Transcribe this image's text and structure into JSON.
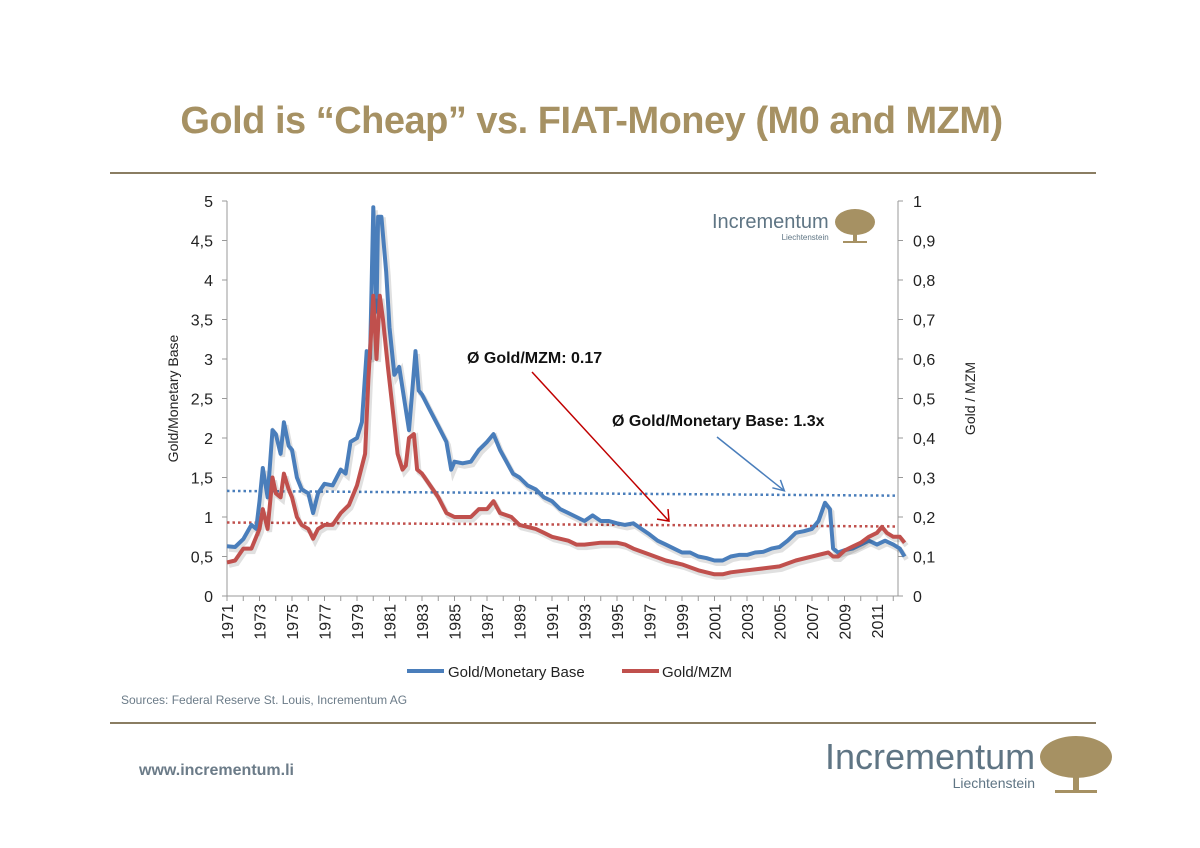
{
  "slide": {
    "title": "Gold is “Cheap” vs. FIAT-Money (M0 and MZM)",
    "sources": "Sources: Federal Reserve St. Louis, Incrementum AG",
    "url": "www.incrementum.li",
    "logo": {
      "name": "Incrementum",
      "sub": "Liechtenstein",
      "icon": "oak-tree-icon"
    },
    "colors": {
      "title": "#a69163",
      "blue": "#4a7ebb",
      "red": "#c0504d",
      "rule": "#8a7d62"
    }
  },
  "chart_data": {
    "type": "line",
    "title": "",
    "xlabel": "",
    "ylabel": "Gold/Monetary Base",
    "y2label": "Gold / MZM",
    "xlim": [
      1971,
      2012.8
    ],
    "ylim": [
      0,
      5
    ],
    "y2lim": [
      0,
      1
    ],
    "x_ticks": [
      "1971",
      "1973",
      "1975",
      "1977",
      "1979",
      "1981",
      "1983",
      "1985",
      "1987",
      "1989",
      "1991",
      "1993",
      "1995",
      "1997",
      "1999",
      "2001",
      "2003",
      "2005",
      "2007",
      "2009",
      "2011"
    ],
    "y_ticks": [
      "0",
      "0,5",
      "1",
      "1,5",
      "2",
      "2,5",
      "3",
      "3,5",
      "4",
      "4,5",
      "5"
    ],
    "y2_ticks": [
      "0",
      "0,1",
      "0,2",
      "0,3",
      "0,4",
      "0,5",
      "0,6",
      "0,7",
      "0,8",
      "0,9",
      "1"
    ],
    "legend": {
      "position": "bottom",
      "entries": [
        "Gold/Monetary Base",
        "Gold/MZM"
      ]
    },
    "grid": false,
    "series": [
      {
        "name": "Gold/Monetary Base",
        "axis": "left",
        "color": "#4a7ebb",
        "x": [
          1971.0,
          1971.5,
          1972.0,
          1972.5,
          1972.8,
          1973.0,
          1973.2,
          1973.5,
          1973.8,
          1974.0,
          1974.3,
          1974.5,
          1974.8,
          1975.0,
          1975.3,
          1975.6,
          1976.0,
          1976.3,
          1976.6,
          1977.0,
          1977.5,
          1978.0,
          1978.3,
          1978.6,
          1979.0,
          1979.3,
          1979.6,
          1979.8,
          1980.0,
          1980.2,
          1980.3,
          1980.5,
          1980.8,
          1981.0,
          1981.3,
          1981.6,
          1981.9,
          1982.2,
          1982.4,
          1982.6,
          1982.8,
          1983.0,
          1983.5,
          1984.0,
          1984.5,
          1984.8,
          1985.0,
          1985.5,
          1986.0,
          1986.5,
          1987.0,
          1987.4,
          1987.8,
          1988.2,
          1988.6,
          1989.0,
          1989.5,
          1990.0,
          1990.5,
          1991.0,
          1991.5,
          1992.0,
          1992.5,
          1993.0,
          1993.5,
          1994.0,
          1994.5,
          1995.0,
          1995.5,
          1996.0,
          1996.5,
          1997.0,
          1997.5,
          1998.0,
          1998.5,
          1999.0,
          1999.5,
          2000.0,
          2000.5,
          2001.0,
          2001.5,
          2002.0,
          2002.5,
          2003.0,
          2003.5,
          2004.0,
          2004.5,
          2005.0,
          2005.5,
          2006.0,
          2006.5,
          2007.0,
          2007.4,
          2007.8,
          2008.1,
          2008.3,
          2008.6,
          2009.0,
          2009.5,
          2010.0,
          2010.5,
          2011.0,
          2011.5,
          2012.0,
          2012.4,
          2012.7
        ],
        "values": [
          0.63,
          0.62,
          0.72,
          0.9,
          0.85,
          1.2,
          1.62,
          1.25,
          2.1,
          2.05,
          1.8,
          2.2,
          1.9,
          1.85,
          1.5,
          1.35,
          1.3,
          1.05,
          1.3,
          1.42,
          1.4,
          1.6,
          1.55,
          1.95,
          2.0,
          2.2,
          3.1,
          3.0,
          4.92,
          3.6,
          4.8,
          4.8,
          4.1,
          3.4,
          2.8,
          2.9,
          2.5,
          2.1,
          2.6,
          3.1,
          2.6,
          2.55,
          2.35,
          2.15,
          1.95,
          1.6,
          1.7,
          1.68,
          1.7,
          1.85,
          1.95,
          2.05,
          1.85,
          1.7,
          1.55,
          1.5,
          1.4,
          1.35,
          1.25,
          1.2,
          1.1,
          1.05,
          1.0,
          0.95,
          1.02,
          0.95,
          0.95,
          0.92,
          0.9,
          0.92,
          0.85,
          0.78,
          0.7,
          0.65,
          0.6,
          0.55,
          0.55,
          0.5,
          0.48,
          0.45,
          0.45,
          0.5,
          0.52,
          0.52,
          0.55,
          0.56,
          0.6,
          0.62,
          0.7,
          0.8,
          0.82,
          0.85,
          0.95,
          1.18,
          1.1,
          0.6,
          0.55,
          0.58,
          0.6,
          0.65,
          0.7,
          0.65,
          0.7,
          0.65,
          0.6,
          0.5
        ]
      },
      {
        "name": "Gold/MZM",
        "axis": "right",
        "color": "#c0504d",
        "x": [
          1971.0,
          1971.5,
          1972.0,
          1972.5,
          1973.0,
          1973.2,
          1973.5,
          1973.8,
          1974.0,
          1974.3,
          1974.5,
          1974.8,
          1975.0,
          1975.3,
          1975.6,
          1976.0,
          1976.3,
          1976.6,
          1977.0,
          1977.5,
          1978.0,
          1978.5,
          1979.0,
          1979.5,
          1979.7,
          1980.0,
          1980.2,
          1980.4,
          1980.6,
          1980.9,
          1981.2,
          1981.5,
          1981.8,
          1982.0,
          1982.2,
          1982.5,
          1982.7,
          1983.0,
          1983.5,
          1984.0,
          1984.5,
          1985.0,
          1985.5,
          1986.0,
          1986.5,
          1987.0,
          1987.4,
          1987.8,
          1988.5,
          1989.0,
          1990.0,
          1990.5,
          1991.0,
          1992.0,
          1992.5,
          1993.0,
          1994.0,
          1995.0,
          1995.5,
          1996.0,
          1997.0,
          1998.0,
          1999.0,
          2000.0,
          2001.0,
          2001.5,
          2002.0,
          2003.0,
          2004.0,
          2005.0,
          2006.0,
          2007.0,
          2007.5,
          2008.0,
          2008.3,
          2008.6,
          2009.0,
          2009.5,
          2010.0,
          2010.5,
          2011.0,
          2011.3,
          2011.6,
          2012.0,
          2012.4,
          2012.7
        ],
        "values": [
          0.085,
          0.09,
          0.12,
          0.12,
          0.17,
          0.22,
          0.17,
          0.3,
          0.26,
          0.25,
          0.31,
          0.27,
          0.25,
          0.2,
          0.18,
          0.17,
          0.145,
          0.17,
          0.18,
          0.18,
          0.21,
          0.23,
          0.28,
          0.36,
          0.55,
          0.76,
          0.6,
          0.76,
          0.7,
          0.58,
          0.47,
          0.36,
          0.32,
          0.33,
          0.4,
          0.41,
          0.32,
          0.31,
          0.28,
          0.25,
          0.21,
          0.2,
          0.2,
          0.2,
          0.22,
          0.22,
          0.24,
          0.21,
          0.2,
          0.18,
          0.17,
          0.16,
          0.15,
          0.14,
          0.13,
          0.13,
          0.135,
          0.135,
          0.13,
          0.12,
          0.105,
          0.09,
          0.08,
          0.065,
          0.055,
          0.055,
          0.06,
          0.065,
          0.07,
          0.075,
          0.09,
          0.1,
          0.105,
          0.11,
          0.1,
          0.1,
          0.115,
          0.125,
          0.135,
          0.15,
          0.16,
          0.175,
          0.16,
          0.15,
          0.15,
          0.135
        ]
      }
    ],
    "reference_lines": [
      {
        "name": "avg-gold-monetary-base",
        "axis": "left",
        "color": "#4a7ebb",
        "style": "dotted",
        "start": 1.33,
        "end": 1.27
      },
      {
        "name": "avg-gold-mzm",
        "axis": "right",
        "color": "#c0504d",
        "style": "dotted",
        "start": 0.186,
        "end": 0.176
      }
    ],
    "annotations": [
      {
        "text": "Ø Gold/MZM: 0.17",
        "color": "#c00000",
        "arrow_to_series": "avg-gold-mzm",
        "arrow_to_x": 1998.2
      },
      {
        "text": "Ø Gold/Monetary Base: 1.3x",
        "color": "#4a7ebb",
        "arrow_to_series": "avg-gold-monetary-base",
        "arrow_to_x": 2005.3
      }
    ]
  }
}
